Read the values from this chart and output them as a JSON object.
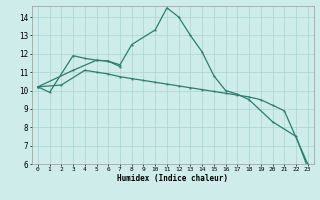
{
  "line1_points": [
    [
      0,
      10.2
    ],
    [
      1,
      9.9
    ],
    [
      3,
      11.9
    ],
    [
      4,
      11.75
    ],
    [
      5,
      11.65
    ],
    [
      6,
      11.6
    ],
    [
      7,
      11.3
    ]
  ],
  "line2_points": [
    [
      0,
      10.2
    ],
    [
      3,
      11.1
    ],
    [
      5,
      11.65
    ],
    [
      6,
      11.6
    ],
    [
      7,
      11.4
    ],
    [
      8,
      12.5
    ],
    [
      10,
      13.3
    ],
    [
      11,
      14.5
    ],
    [
      12,
      14.0
    ],
    [
      13,
      13.0
    ],
    [
      14,
      12.1
    ],
    [
      15,
      10.8
    ],
    [
      16,
      10.0
    ],
    [
      17,
      9.8
    ],
    [
      18,
      9.5
    ],
    [
      20,
      8.3
    ],
    [
      22,
      7.5
    ],
    [
      23,
      5.8
    ]
  ],
  "line3_points": [
    [
      0,
      10.2
    ],
    [
      2,
      10.3
    ],
    [
      4,
      11.1
    ],
    [
      5,
      11.0
    ],
    [
      6,
      10.9
    ],
    [
      7,
      10.75
    ],
    [
      8,
      10.65
    ],
    [
      9,
      10.55
    ],
    [
      10,
      10.45
    ],
    [
      11,
      10.35
    ],
    [
      12,
      10.25
    ],
    [
      13,
      10.15
    ],
    [
      14,
      10.05
    ],
    [
      15,
      9.95
    ],
    [
      16,
      9.85
    ],
    [
      17,
      9.75
    ],
    [
      18,
      9.65
    ],
    [
      19,
      9.5
    ],
    [
      20,
      9.2
    ],
    [
      21,
      8.9
    ],
    [
      23,
      6.0
    ]
  ],
  "line_color": "#2e7d6e",
  "bg_color": "#ceecea",
  "grid_color": "#aad4cf",
  "xlabel": "Humidex (Indice chaleur)",
  "ylim": [
    6,
    14.6
  ],
  "xlim": [
    -0.5,
    23.5
  ],
  "yticks": [
    6,
    7,
    8,
    9,
    10,
    11,
    12,
    13,
    14
  ],
  "xticks": [
    0,
    1,
    2,
    3,
    4,
    5,
    6,
    7,
    8,
    9,
    10,
    11,
    12,
    13,
    14,
    15,
    16,
    17,
    18,
    19,
    20,
    21,
    22,
    23
  ]
}
